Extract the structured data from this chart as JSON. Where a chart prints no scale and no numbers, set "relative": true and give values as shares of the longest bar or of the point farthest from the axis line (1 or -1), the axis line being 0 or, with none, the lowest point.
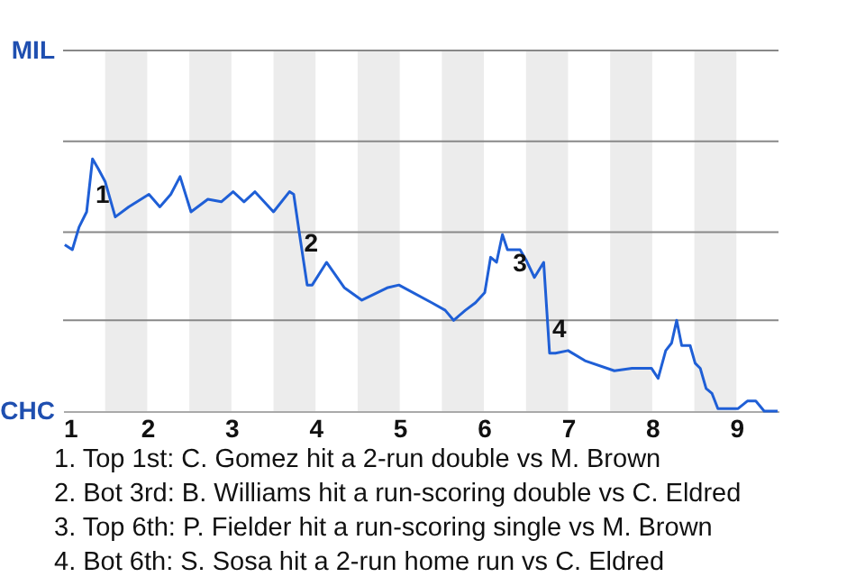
{
  "chart_data": {
    "type": "line",
    "relative": true,
    "x": [
      1.02,
      1.11,
      1.19,
      1.28,
      1.35,
      1.42,
      1.5,
      1.62,
      1.78,
      2.02,
      2.15,
      2.28,
      2.39,
      2.52,
      2.72,
      2.88,
      3.02,
      3.15,
      3.28,
      3.5,
      3.69,
      3.74,
      3.81,
      3.9,
      3.96,
      4.13,
      4.34,
      4.55,
      4.86,
      4.99,
      5.38,
      5.54,
      5.64,
      5.78,
      5.9,
      6.01,
      6.08,
      6.15,
      6.22,
      6.28,
      6.43,
      6.5,
      6.6,
      6.71,
      6.78,
      6.85,
      7.0,
      7.2,
      7.55,
      7.76,
      7.99,
      8.07,
      8.16,
      8.23,
      8.29,
      8.35,
      8.45,
      8.51,
      8.57,
      8.64,
      8.71,
      8.78,
      8.85,
      8.9,
      9.02,
      9.13,
      9.23,
      9.33,
      9.49
    ],
    "series": [
      {
        "color": "#1f5fd6",
        "values": [
          0.66,
          0.64,
          0.73,
          0.79,
          1,
          0.96,
          0.91,
          0.77,
          0.81,
          0.86,
          0.81,
          0.86,
          0.93,
          0.79,
          0.84,
          0.83,
          0.87,
          0.83,
          0.87,
          0.79,
          0.87,
          0.86,
          0.7,
          0.5,
          0.5,
          0.59,
          0.49,
          0.44,
          0.49,
          0.5,
          0.43,
          0.4,
          0.36,
          0.4,
          0.43,
          0.47,
          0.61,
          0.59,
          0.7,
          0.64,
          0.64,
          0.6,
          0.53,
          0.59,
          0.23,
          0.23,
          0.24,
          0.2,
          0.16,
          0.17,
          0.17,
          0.13,
          0.24,
          0.27,
          0.36,
          0.26,
          0.26,
          0.19,
          0.17,
          0.09,
          0.07,
          0.01,
          0.01,
          0.01,
          0.01,
          0.04,
          0.04,
          0,
          0
        ]
      }
    ],
    "xlim": [
      1,
      9.5
    ],
    "xticks": [
      1,
      2,
      3,
      4,
      5,
      6,
      7,
      8,
      9
    ],
    "ref_lines": [
      {
        "axis": "y",
        "value": 0.36,
        "color": "#888888"
      },
      {
        "axis": "y",
        "value": 0.71,
        "color": "#888888"
      },
      {
        "axis": "y",
        "value": 1.07,
        "color": "#888888"
      },
      {
        "axis": "y",
        "value": 1.43,
        "color": "#888888"
      }
    ],
    "bands": [
      {
        "axis": "x",
        "from": 1.5,
        "to": 2,
        "color": "#ececec"
      },
      {
        "axis": "x",
        "from": 2.5,
        "to": 3,
        "color": "#ececec"
      },
      {
        "axis": "x",
        "from": 3.5,
        "to": 4,
        "color": "#ececec"
      },
      {
        "axis": "x",
        "from": 4.5,
        "to": 5,
        "color": "#ececec"
      },
      {
        "axis": "x",
        "from": 5.5,
        "to": 6,
        "color": "#ececec"
      },
      {
        "axis": "x",
        "from": 6.5,
        "to": 7,
        "color": "#ececec"
      },
      {
        "axis": "x",
        "from": 7.5,
        "to": 8,
        "color": "#ececec"
      },
      {
        "axis": "x",
        "from": 8.5,
        "to": 9,
        "color": "#ececec"
      }
    ],
    "annotations": [
      {
        "text": "1",
        "x": 1.32,
        "y": 0.91
      },
      {
        "text": "2",
        "x": 3.8,
        "y": 0.72
      },
      {
        "text": "3",
        "x": 6.28,
        "y": 0.64
      },
      {
        "text": "4",
        "x": 6.75,
        "y": 0.38
      },
      "MIL",
      "CHC",
      "1. Top 1st: C. Gomez hit a 2-run double vs M. Brown",
      "2. Bot 3rd: B. Williams hit a run-scoring double vs C. Eldred",
      "3. Top 6th: P. Fielder hit a run-scoring single vs M. Brown",
      "4. Bot 6th: S. Sosa hit a 2-run home run vs C. Eldred"
    ]
  }
}
